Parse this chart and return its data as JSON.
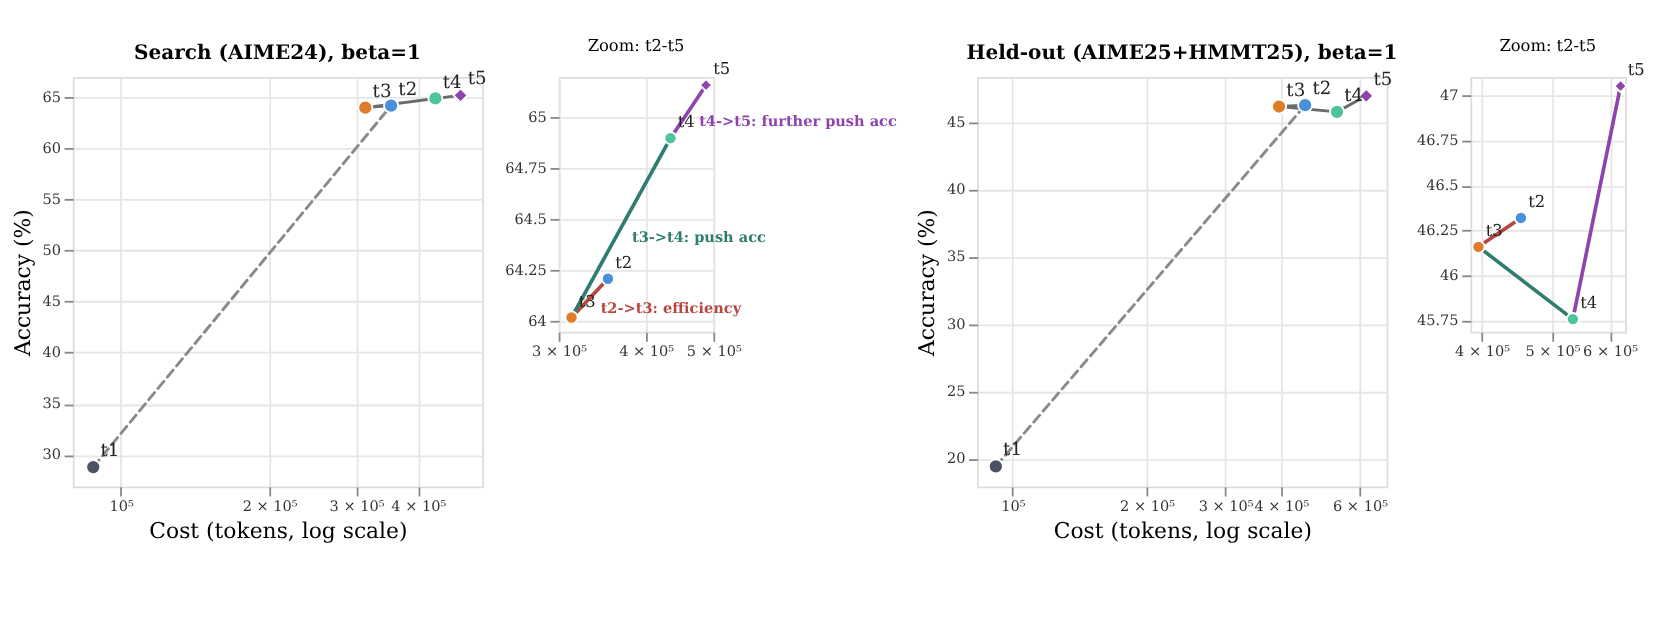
{
  "chart_data": [
    {
      "type": "line",
      "title": "Search (AIME24), beta=1",
      "xlabel": "Cost (tokens, log scale)",
      "ylabel": "Accuracy (%)",
      "log": "x",
      "grid": true,
      "xlim": [
        80000,
        540000
      ],
      "ylim": [
        26.9,
        67
      ],
      "xticks": [
        {
          "value": 100000,
          "label": "10⁵"
        },
        {
          "value": 200000,
          "label": "2 × 10⁵"
        },
        {
          "value": 300000,
          "label": "3 × 10⁵"
        },
        {
          "value": 400000,
          "label": "4 × 10⁵"
        }
      ],
      "yticks": [
        30,
        35,
        40,
        45,
        50,
        55,
        60,
        65
      ],
      "series": [
        {
          "type": "line",
          "line_style": "dashed",
          "color": "#8a8a8a",
          "x": [
            88000,
            353000
          ],
          "values": [
            28.8,
            64.2
          ]
        },
        {
          "type": "line",
          "line_style": "solid",
          "color": "#6b6b6b",
          "x": [
            353000,
            313000,
            434000,
            488000
          ],
          "values": [
            64.2,
            64.0,
            64.9,
            65.2
          ]
        },
        {
          "type": "scatter",
          "marker": "circle",
          "x": [
            88000,
            353000,
            313000,
            434000
          ],
          "values": [
            28.8,
            64.2,
            64.0,
            64.9
          ],
          "colors": [
            "#4a5263",
            "#4a90d9",
            "#e07b2a",
            "#4fc49a"
          ]
        },
        {
          "type": "scatter",
          "marker": "diamond",
          "x": [
            488000
          ],
          "values": [
            65.2
          ],
          "colors": [
            "#8e44ad"
          ]
        }
      ],
      "annotations": [
        {
          "text": "t1",
          "x": 88000,
          "y": 28.8
        },
        {
          "text": "t2",
          "x": 353000,
          "y": 64.2
        },
        {
          "text": "t3",
          "x": 313000,
          "y": 64.0
        },
        {
          "text": "t4",
          "x": 434000,
          "y": 64.9
        },
        {
          "text": "t5",
          "x": 488000,
          "y": 65.2
        }
      ]
    },
    {
      "type": "line",
      "title": "Zoom: t2-t5",
      "log": "x",
      "grid": true,
      "xlim": [
        300000,
        500000
      ],
      "ylim": [
        63.95,
        65.2
      ],
      "xticks": [
        {
          "value": 300000,
          "label": "3 × 10⁵"
        },
        {
          "value": 400000,
          "label": "4 × 10⁵"
        },
        {
          "value": 500000,
          "label": "5 × 10⁵"
        }
      ],
      "yticks": [
        64,
        64.25,
        64.5,
        64.75,
        65
      ],
      "series": [
        {
          "type": "line",
          "name": "t2->t3: efficiency",
          "color": "#b5473f",
          "x": [
            353000,
            313000
          ],
          "values": [
            64.21,
            64.02
          ]
        },
        {
          "type": "line",
          "name": "t3->t4: push acc",
          "color": "#2e7d6e",
          "x": [
            313000,
            434000
          ],
          "values": [
            64.02,
            64.9
          ]
        },
        {
          "type": "line",
          "name": "t4->t5: further push acc",
          "color": "#8e44ad",
          "x": [
            434000,
            488000
          ],
          "values": [
            64.9,
            65.16
          ]
        },
        {
          "type": "scatter",
          "marker": "circle",
          "x": [
            353000,
            313000,
            434000
          ],
          "values": [
            64.21,
            64.02,
            64.9
          ],
          "colors": [
            "#4a90d9",
            "#e07b2a",
            "#4fc49a"
          ]
        },
        {
          "type": "scatter",
          "marker": "diamond",
          "x": [
            488000
          ],
          "values": [
            65.16
          ],
          "colors": [
            "#8e44ad"
          ]
        }
      ],
      "annotations": [
        {
          "text": "t2",
          "x": 353000,
          "y": 64.21
        },
        {
          "text": "t3",
          "x": 313000,
          "y": 64.02
        },
        {
          "text": "t4",
          "x": 434000,
          "y": 64.9
        },
        {
          "text": "t5",
          "x": 488000,
          "y": 65.16
        }
      ]
    },
    {
      "type": "line",
      "title": "Held-out (AIME25+HMMT25), beta=1",
      "xlabel": "Cost (tokens, log scale)",
      "ylabel": "Accuracy (%)",
      "log": "x",
      "grid": true,
      "xlim": [
        83400,
        690000
      ],
      "ylim": [
        17.9,
        48.4
      ],
      "xticks": [
        {
          "value": 100000,
          "label": "10⁵"
        },
        {
          "value": 200000,
          "label": "2 × 10⁵"
        },
        {
          "value": 300000,
          "label": "3 × 10⁵"
        },
        {
          "value": 400000,
          "label": "4 × 10⁵"
        },
        {
          "value": 600000,
          "label": "6 × 10⁵"
        }
      ],
      "yticks": [
        20,
        25,
        30,
        35,
        40,
        45
      ],
      "series": [
        {
          "type": "line",
          "line_style": "dashed",
          "color": "#8a8a8a",
          "x": [
            91800,
            453000
          ],
          "values": [
            19.4,
            46.3
          ]
        },
        {
          "type": "line",
          "line_style": "solid",
          "color": "#6b6b6b",
          "x": [
            453000,
            396000,
            534000,
            621000
          ],
          "values": [
            46.3,
            46.2,
            45.8,
            47.0
          ]
        },
        {
          "type": "scatter",
          "marker": "circle",
          "x": [
            91800,
            453000,
            396000,
            534000
          ],
          "values": [
            19.4,
            46.3,
            46.2,
            45.8
          ],
          "colors": [
            "#4a5263",
            "#4a90d9",
            "#e07b2a",
            "#4fc49a"
          ]
        },
        {
          "type": "scatter",
          "marker": "diamond",
          "x": [
            621000
          ],
          "values": [
            47.0
          ],
          "colors": [
            "#8e44ad"
          ]
        }
      ],
      "annotations": [
        {
          "text": "t1",
          "x": 91800,
          "y": 19.4
        },
        {
          "text": "t2",
          "x": 453000,
          "y": 46.3
        },
        {
          "text": "t3",
          "x": 396000,
          "y": 46.2
        },
        {
          "text": "t4",
          "x": 534000,
          "y": 45.8
        },
        {
          "text": "t5",
          "x": 621000,
          "y": 47.0
        }
      ]
    },
    {
      "type": "line",
      "title": "Zoom: t2-t5",
      "log": "x",
      "grid": true,
      "xlim": [
        386000,
        630000
      ],
      "ylim": [
        45.69,
        47.1
      ],
      "xticks": [
        {
          "value": 400000,
          "label": "4 × 10⁵"
        },
        {
          "value": 500000,
          "label": "5 × 10⁵"
        },
        {
          "value": 600000,
          "label": "6 × 10⁵"
        }
      ],
      "yticks": [
        45.75,
        46,
        46.25,
        46.5,
        46.75,
        47
      ],
      "series": [
        {
          "type": "line",
          "color": "#b5473f",
          "x": [
            453000,
            396000
          ],
          "values": [
            46.32,
            46.16
          ]
        },
        {
          "type": "line",
          "color": "#2e7d6e",
          "x": [
            396000,
            534000
          ],
          "values": [
            46.16,
            45.76
          ]
        },
        {
          "type": "line",
          "color": "#8e44ad",
          "x": [
            534000,
            621000
          ],
          "values": [
            45.76,
            47.05
          ]
        },
        {
          "type": "scatter",
          "marker": "circle",
          "x": [
            453000,
            396000,
            534000
          ],
          "values": [
            46.32,
            46.16,
            45.76
          ],
          "colors": [
            "#4a90d9",
            "#e07b2a",
            "#4fc49a"
          ]
        },
        {
          "type": "scatter",
          "marker": "diamond",
          "x": [
            621000
          ],
          "values": [
            47.05
          ],
          "colors": [
            "#8e44ad"
          ]
        }
      ],
      "annotations": [
        {
          "text": "t2",
          "x": 453000,
          "y": 46.32
        },
        {
          "text": "t3",
          "x": 396000,
          "y": 46.16
        },
        {
          "text": "t4",
          "x": 534000,
          "y": 45.76
        },
        {
          "text": "t5",
          "x": 621000,
          "y": 47.05
        }
      ]
    }
  ]
}
